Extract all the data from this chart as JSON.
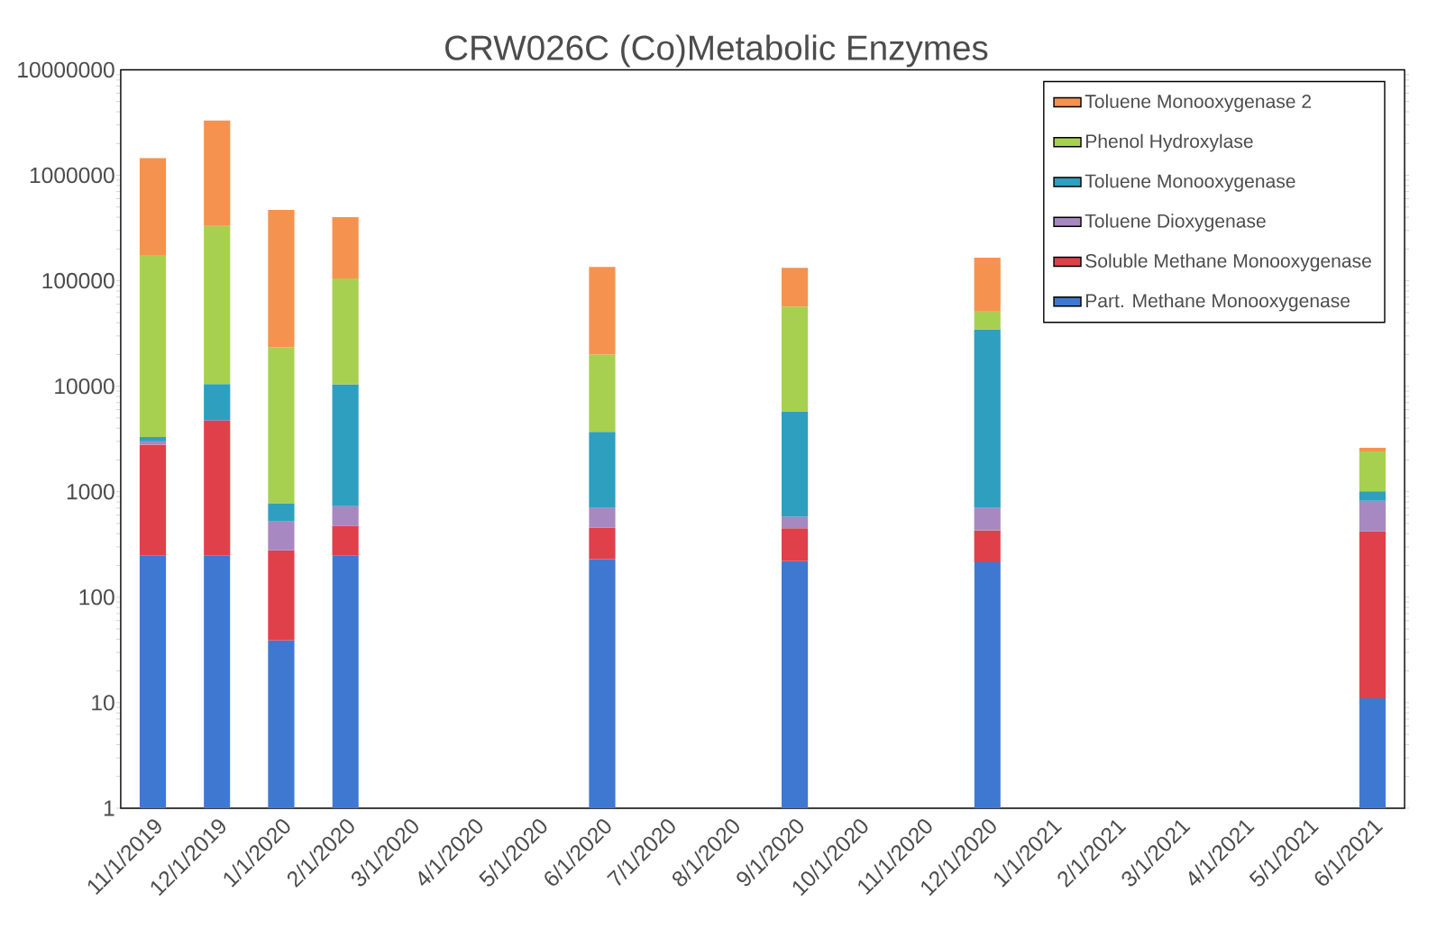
{
  "chart_data": {
    "type": "bar",
    "stacked": true,
    "log": "y",
    "title": "CRW026C (Co)Metabolic Enzymes",
    "categories": [
      "11/1/2019",
      "12/1/2019",
      "1/1/2020",
      "2/1/2020",
      "3/1/2020",
      "4/1/2020",
      "5/1/2020",
      "6/1/2020",
      "7/1/2020",
      "8/1/2020",
      "9/1/2020",
      "10/1/2020",
      "11/1/2020",
      "12/1/2020",
      "1/1/2021",
      "2/1/2021",
      "3/1/2021",
      "4/1/2021",
      "5/1/2021",
      "6/1/2021"
    ],
    "series": [
      {
        "name": "Part. Methane Monooxygenase",
        "color": "#3f78d0",
        "values": [
          250,
          250,
          39,
          250,
          null,
          null,
          null,
          230,
          null,
          null,
          220,
          null,
          null,
          215,
          null,
          null,
          null,
          null,
          null,
          11
        ]
      },
      {
        "name": "Soluble Methane Monooxygenase",
        "color": "#e0404a",
        "values": [
          2550,
          4450,
          240,
          225,
          null,
          null,
          null,
          225,
          null,
          null,
          230,
          null,
          null,
          215,
          null,
          null,
          null,
          null,
          null,
          410
        ]
      },
      {
        "name": "Toluene Dioxygenase",
        "color": "#a888c0",
        "values": [
          200,
          100,
          245,
          255,
          null,
          null,
          null,
          245,
          null,
          null,
          130,
          null,
          null,
          270,
          null,
          null,
          null,
          null,
          null,
          400
        ]
      },
      {
        "name": "Toluene Monooxygenase",
        "color": "#2e9fbf",
        "values": [
          300,
          5700,
          255,
          9700,
          null,
          null,
          null,
          3000,
          null,
          null,
          5200,
          null,
          null,
          34000,
          null,
          null,
          null,
          null,
          null,
          190
        ]
      },
      {
        "name": "Phenol Hydroxylase",
        "color": "#a8d050",
        "values": [
          172000,
          320000,
          22700,
          95000,
          null,
          null,
          null,
          16300,
          null,
          null,
          51000,
          null,
          null,
          16500,
          null,
          null,
          null,
          null,
          null,
          1400
        ]
      },
      {
        "name": "Toluene Monooxygenase 2",
        "color": "#f5924f",
        "values": [
          1275000,
          2970000,
          446000,
          295000,
          null,
          null,
          null,
          115000,
          null,
          null,
          76000,
          null,
          null,
          114000,
          null,
          null,
          null,
          null,
          null,
          200
        ]
      }
    ],
    "ylim": [
      1,
      10000000
    ],
    "yticks": [
      1,
      10,
      100,
      1000,
      10000,
      100000,
      1000000,
      10000000
    ],
    "legend": "top right",
    "grid": false
  }
}
